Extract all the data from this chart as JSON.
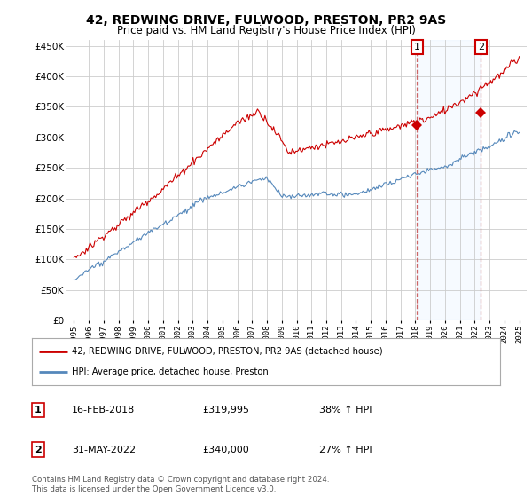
{
  "title": "42, REDWING DRIVE, FULWOOD, PRESTON, PR2 9AS",
  "subtitle": "Price paid vs. HM Land Registry's House Price Index (HPI)",
  "ylim": [
    0,
    460000
  ],
  "yticks": [
    0,
    50000,
    100000,
    150000,
    200000,
    250000,
    300000,
    350000,
    400000,
    450000
  ],
  "background_color": "#ffffff",
  "grid_color": "#cccccc",
  "legend_label_red": "42, REDWING DRIVE, FULWOOD, PRESTON, PR2 9AS (detached house)",
  "legend_label_blue": "HPI: Average price, detached house, Preston",
  "annotation1_date": "16-FEB-2018",
  "annotation1_price": "£319,995",
  "annotation1_hpi": "38% ↑ HPI",
  "annotation2_date": "31-MAY-2022",
  "annotation2_price": "£340,000",
  "annotation2_hpi": "27% ↑ HPI",
  "footnote": "Contains HM Land Registry data © Crown copyright and database right 2024.\nThis data is licensed under the Open Government Licence v3.0.",
  "sale1_year": 2018.12,
  "sale1_value": 319995,
  "sale2_year": 2022.41,
  "sale2_value": 340000,
  "red_color": "#cc0000",
  "blue_color": "#5588bb",
  "shade_color": "#ddeeff",
  "dashed_color": "#cc6666"
}
